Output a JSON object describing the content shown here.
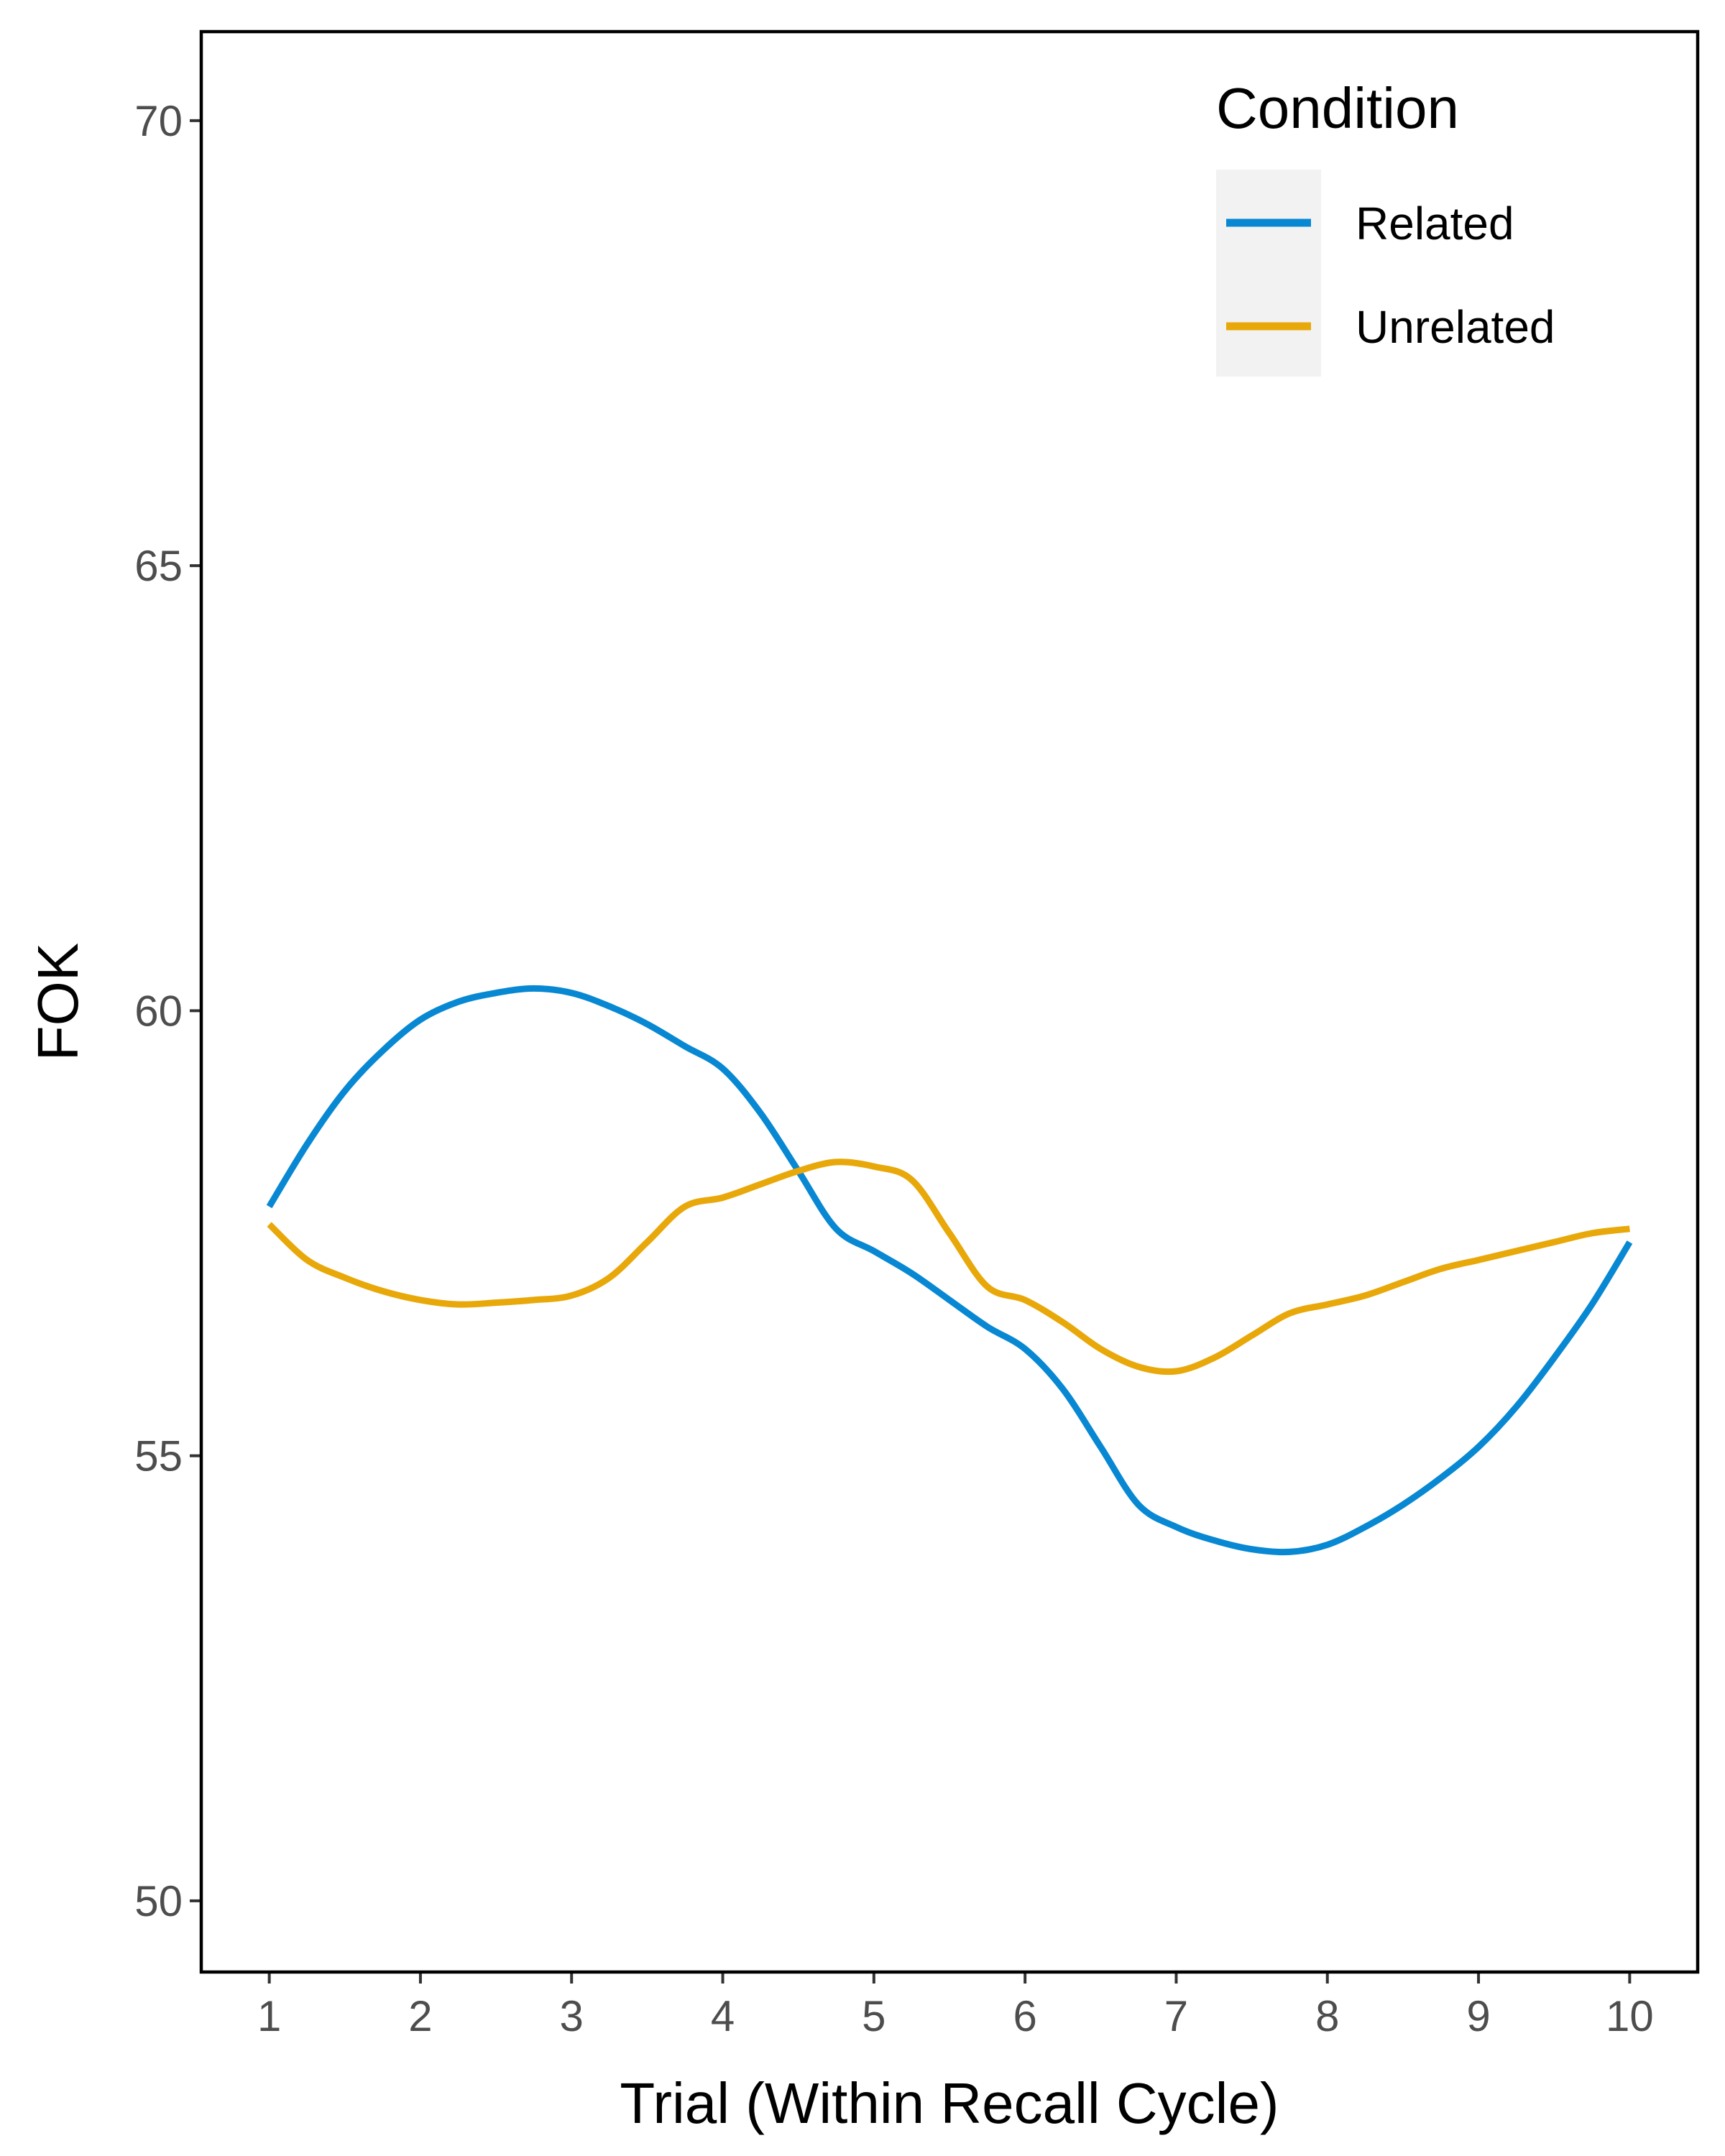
{
  "chart_data": {
    "type": "line",
    "title": "",
    "xlabel": "Trial (Within Recall Cycle)",
    "ylabel": "FOK",
    "xlim": [
      0.55,
      10.45
    ],
    "ylim": [
      49.2,
      71.0
    ],
    "x_ticks": [
      1,
      2,
      3,
      4,
      5,
      6,
      7,
      8,
      9,
      10
    ],
    "x_tick_labels": [
      "1",
      "2",
      "3",
      "4",
      "5",
      "6",
      "7",
      "8",
      "9",
      "10"
    ],
    "y_ticks": [
      50,
      55,
      60,
      65,
      70
    ],
    "y_tick_labels": [
      "50",
      "55",
      "60",
      "65",
      "70"
    ],
    "grid": false,
    "legend": {
      "title": "Condition",
      "position": "top-right"
    },
    "series": [
      {
        "name": "Related",
        "color": "#0888D2",
        "x": [
          1,
          1.25,
          1.5,
          1.75,
          2,
          2.25,
          2.5,
          2.75,
          3,
          3.25,
          3.5,
          3.75,
          4,
          4.25,
          4.5,
          4.75,
          5,
          5.25,
          5.5,
          5.75,
          6,
          6.25,
          6.5,
          6.75,
          7,
          7.25,
          7.5,
          7.75,
          8,
          8.25,
          8.5,
          8.75,
          9,
          9.25,
          9.5,
          9.75,
          10
        ],
        "y": [
          57.8,
          58.5,
          59.1,
          59.55,
          59.9,
          60.1,
          60.2,
          60.25,
          60.2,
          60.05,
          59.85,
          59.6,
          59.35,
          58.85,
          58.2,
          57.55,
          57.3,
          57.05,
          56.75,
          56.45,
          56.2,
          55.75,
          55.1,
          54.45,
          54.2,
          54.05,
          53.95,
          53.92,
          54.0,
          54.2,
          54.45,
          54.75,
          55.1,
          55.55,
          56.1,
          56.7,
          57.4
        ]
      },
      {
        "name": "Unrelated",
        "color": "#E8A80A",
        "x": [
          1,
          1.25,
          1.5,
          1.75,
          2,
          2.25,
          2.5,
          2.75,
          3,
          3.25,
          3.5,
          3.75,
          4,
          4.25,
          4.5,
          4.75,
          5,
          5.25,
          5.5,
          5.75,
          6,
          6.25,
          6.5,
          6.75,
          7,
          7.25,
          7.5,
          7.75,
          8,
          8.25,
          8.5,
          8.75,
          9,
          9.25,
          9.5,
          9.75,
          10
        ],
        "y": [
          57.6,
          57.2,
          57.0,
          56.85,
          56.75,
          56.7,
          56.72,
          56.75,
          56.8,
          57.0,
          57.4,
          57.8,
          57.9,
          58.05,
          58.2,
          58.3,
          58.25,
          58.1,
          57.5,
          56.9,
          56.75,
          56.5,
          56.2,
          56.0,
          55.95,
          56.1,
          56.35,
          56.6,
          56.7,
          56.8,
          56.95,
          57.1,
          57.2,
          57.3,
          57.4,
          57.5,
          57.55
        ]
      }
    ]
  }
}
